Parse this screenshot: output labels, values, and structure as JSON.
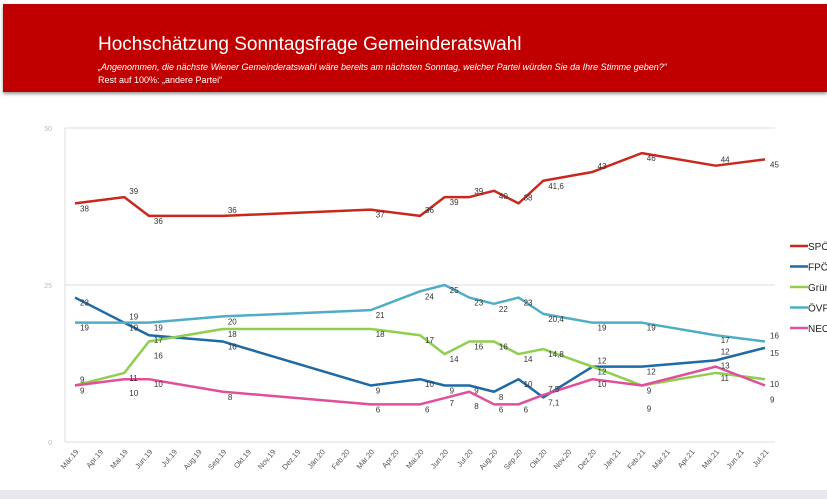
{
  "header": {
    "title": "Hochschätzung Sonntagsfrage Gemeinderatswahl",
    "subtitle": "„Angenommen, die nächste Wiener Gemeinderatswahl wäre bereits am nächsten Sonntag, welcher Partei würden Sie da Ihre Stimme geben?“",
    "note": "Rest auf 100%: „andere Partei“",
    "color": "#c00000"
  },
  "chart_data": {
    "type": "line",
    "title": "Hochschätzung Sonntagsfrage Gemeinderatswahl",
    "xlabel": "",
    "ylabel": "",
    "ylim": [
      0,
      50
    ],
    "yticks": [
      "0",
      "25",
      "50"
    ],
    "grid": true,
    "legend": "right",
    "categories": [
      "Mär.19",
      "Apr.19",
      "Mai.19",
      "Jun.19",
      "Jul.19",
      "Aug.19",
      "Sep.19",
      "Okt.19",
      "Nov.19",
      "Dez.19",
      "Jän.20",
      "Feb.20",
      "Mär.20",
      "Apr.20",
      "Mai.20",
      "Jun.20",
      "Jul.20",
      "Aug.20",
      "Sep.20",
      "Okt.20",
      "Nov.20",
      "Dez.20",
      "Jän.21",
      "Feb.21",
      "Mär.21",
      "Apr.21",
      "Mai.21",
      "Jun.21",
      "Jul.21"
    ],
    "x": [
      "Mär.19",
      "Mai.19",
      "Jun.19",
      "Sep.19",
      "Mär.20",
      "Mai.20",
      "Jun.20",
      "Jul.20",
      "Aug.20",
      "Sep.20",
      "Okt.20",
      "Dez.20",
      "Feb.21",
      "Mai.21",
      "Jul.21"
    ],
    "series": [
      {
        "name": "SPÖ",
        "color": "#c8281e",
        "values": [
          38,
          39,
          36,
          36,
          37,
          36,
          39,
          39,
          40,
          38,
          41.6,
          43,
          46,
          44,
          45
        ],
        "labels": [
          "38",
          "39",
          "36",
          "36",
          "37",
          "36",
          "39",
          "39",
          "40",
          "38",
          "41,6",
          "43",
          "46",
          "44",
          "45"
        ]
      },
      {
        "name": "FPÖ",
        "color": "#1f6aa5",
        "values": [
          23,
          19,
          17,
          16,
          9,
          10,
          9,
          9,
          8,
          10,
          7.1,
          12,
          12,
          13,
          15
        ],
        "labels": [
          "23",
          "19",
          "17",
          "16",
          "9",
          "10",
          "9",
          "9",
          "8",
          "10",
          "7,1",
          "12",
          "12",
          "13",
          "15"
        ]
      },
      {
        "name": "Grüne",
        "color": "#8fce4f",
        "values": [
          9,
          11,
          16,
          18,
          18,
          17,
          14,
          16,
          16,
          14,
          14.8,
          12,
          9,
          11,
          10
        ],
        "labels": [
          "9",
          "11",
          "16",
          "18",
          "18",
          "17",
          "14",
          "16",
          "16",
          "14",
          "14,8",
          "12",
          "9",
          "11",
          "10"
        ]
      },
      {
        "name": "ÖVP",
        "color": "#4fadc5",
        "values": [
          19,
          19,
          19,
          20,
          21,
          24,
          25,
          23,
          22,
          23,
          20.4,
          19,
          19,
          17,
          16
        ],
        "labels": [
          "19",
          "19",
          "19",
          "20",
          "21",
          "24",
          "25",
          "23",
          "22",
          "23",
          "20,4",
          "19",
          "19",
          "17",
          "16"
        ]
      },
      {
        "name": "NEOS",
        "color": "#e0509a",
        "values": [
          9,
          10,
          10,
          8,
          6,
          6,
          7,
          8,
          6,
          6,
          7.5,
          10,
          9,
          12,
          9
        ],
        "labels": [
          "9",
          "10",
          "10",
          "8",
          "6",
          "6",
          "7",
          "8",
          "6",
          "6",
          "7,5",
          "10",
          "9",
          "12",
          "9"
        ]
      }
    ]
  }
}
